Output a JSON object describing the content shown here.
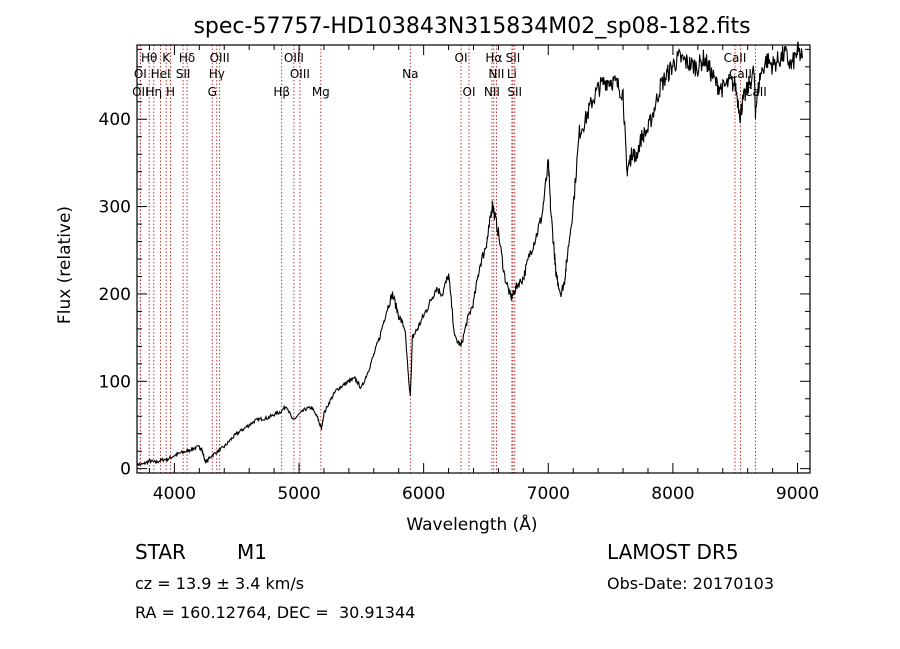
{
  "chart_data": {
    "type": "line",
    "title": "spec-57757-HD103843N315834M02_sp08-182.fits",
    "xlabel": "Wavelength (Å)",
    "ylabel": "Flux (relative)",
    "xlim": [
      3700,
      9100
    ],
    "ylim": [
      -5,
      485
    ],
    "xticks": [
      4000,
      5000,
      6000,
      7000,
      8000,
      9000
    ],
    "yticks": [
      0,
      100,
      200,
      300,
      400
    ],
    "series": [
      {
        "x": [
          3700,
          3750,
          3800,
          3850,
          3900,
          3950,
          4000,
          4050,
          4100,
          4150,
          4200,
          4220,
          4250,
          4300,
          4350,
          4400,
          4450,
          4500,
          4550,
          4600,
          4650,
          4700,
          4750,
          4800,
          4850,
          4900,
          4950,
          5000,
          5050,
          5100,
          5150,
          5180,
          5200,
          5250,
          5300,
          5350,
          5400,
          5450,
          5500,
          5550,
          5600,
          5650,
          5700,
          5750,
          5800,
          5850,
          5880,
          5893,
          5910,
          5950,
          6000,
          6050,
          6100,
          6150,
          6200,
          6250,
          6300,
          6350,
          6400,
          6450,
          6500,
          6520,
          6550,
          6560,
          6600,
          6650,
          6700,
          6720,
          6750,
          6800,
          6850,
          6900,
          6950,
          7000,
          7020,
          7050,
          7060,
          7100,
          7130,
          7150,
          7200,
          7250,
          7300,
          7350,
          7400,
          7450,
          7500,
          7550,
          7600,
          7630,
          7650,
          7680,
          7700,
          7750,
          7800,
          7850,
          7900,
          7950,
          8000,
          8050,
          8100,
          8150,
          8200,
          8250,
          8300,
          8350,
          8400,
          8450,
          8500,
          8540,
          8560,
          8600,
          8650,
          8662,
          8700,
          8750,
          8800,
          8850,
          8900,
          8950,
          9000,
          9040
        ],
        "y": [
          5,
          5,
          9,
          7,
          10,
          11,
          15,
          18,
          20,
          23,
          25,
          22,
          7,
          15,
          20,
          25,
          33,
          40,
          45,
          50,
          55,
          57,
          58,
          62,
          65,
          72,
          55,
          62,
          68,
          70,
          58,
          45,
          63,
          78,
          90,
          95,
          100,
          103,
          92,
          110,
          130,
          152,
          180,
          200,
          175,
          160,
          100,
          82,
          150,
          160,
          175,
          190,
          207,
          200,
          222,
          150,
          140,
          170,
          190,
          232,
          255,
          270,
          302,
          297,
          270,
          220,
          195,
          200,
          210,
          218,
          245,
          265,
          290,
          350,
          295,
          245,
          225,
          200,
          214,
          240,
          300,
          385,
          400,
          420,
          435,
          443,
          445,
          440,
          430,
          340,
          350,
          365,
          355,
          380,
          388,
          412,
          438,
          450,
          462,
          470,
          466,
          462,
          460,
          470,
          455,
          440,
          435,
          442,
          440,
          405,
          420,
          435,
          455,
          410,
          450,
          468,
          462,
          468,
          475,
          460,
          478,
          470
        ]
      }
    ],
    "line_markers": [
      {
        "label": "Hθ",
        "x": 3798,
        "row": 0
      },
      {
        "label": "K",
        "x": 3934,
        "row": 0
      },
      {
        "label": "Hδ",
        "x": 4102,
        "row": 0
      },
      {
        "label": "OIII",
        "x": 4363,
        "row": 0
      },
      {
        "label": "OIII",
        "x": 4959,
        "row": 0
      },
      {
        "label": "OI",
        "x": 6300,
        "row": 0
      },
      {
        "label": "Hα",
        "x": 6563,
        "row": 0
      },
      {
        "label": "SII",
        "x": 6717,
        "row": 0
      },
      {
        "label": "CaII",
        "x": 8498,
        "row": 0
      },
      {
        "label": "OI",
        "x": 3727,
        "row": 1
      },
      {
        "label": "HeI",
        "x": 3889,
        "row": 1
      },
      {
        "label": "SII",
        "x": 4070,
        "row": 1
      },
      {
        "label": "Hγ",
        "x": 4340,
        "row": 1
      },
      {
        "label": "OIII",
        "x": 5007,
        "row": 1
      },
      {
        "label": "Na",
        "x": 5893,
        "row": 1
      },
      {
        "label": "NII",
        "x": 6584,
        "row": 1
      },
      {
        "label": "Li",
        "x": 6708,
        "row": 1
      },
      {
        "label": "CaII",
        "x": 8542,
        "row": 1
      },
      {
        "label": "OII",
        "x": 3727,
        "row": 2
      },
      {
        "label": "Hη",
        "x": 3835,
        "row": 2
      },
      {
        "label": "H",
        "x": 3969,
        "row": 2
      },
      {
        "label": "G",
        "x": 4304,
        "row": 2
      },
      {
        "label": "Hβ",
        "x": 4861,
        "row": 2
      },
      {
        "label": "Mg",
        "x": 5175,
        "row": 2
      },
      {
        "label": "OI",
        "x": 6364,
        "row": 2
      },
      {
        "label": "NII",
        "x": 6548,
        "row": 2
      },
      {
        "label": "SII",
        "x": 6731,
        "row": 2
      },
      {
        "label": "CaII",
        "x": 8662,
        "row": 2
      }
    ],
    "grid": false,
    "colors": {
      "spectrum": "#000000",
      "marker": "#b22222"
    }
  },
  "info": {
    "object_class": "STAR",
    "subclass": "M1",
    "cz": "cz = 13.9 ± 3.4 km/s",
    "coords": "RA = 160.12764, DEC =  30.91344",
    "survey": "LAMOST DR5",
    "obs_date": "Obs-Date: 20170103"
  }
}
